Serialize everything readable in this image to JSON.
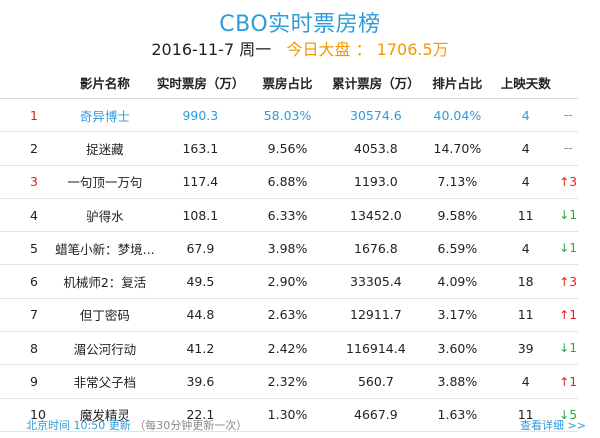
{
  "header": {
    "title": "CBO实时票房榜",
    "date": "2016-11-7 周一",
    "today_label": "今日大盘 ： 1706.5万"
  },
  "columns": [
    "影片名称",
    "实时票房（万）",
    "票房占比",
    "累计票房（万）",
    "排片占比",
    "上映天数"
  ],
  "rows": [
    {
      "rank": "1",
      "name": "奇异博士",
      "realtime": "990.3",
      "share": "58.03%",
      "cumulative": "30574.6",
      "screening": "40.04%",
      "days": "4",
      "trend": "--",
      "trend_dir": "none"
    },
    {
      "rank": "2",
      "name": "捉迷藏",
      "realtime": "163.1",
      "share": "9.56%",
      "cumulative": "4053.8",
      "screening": "14.70%",
      "days": "4",
      "trend": "--",
      "trend_dir": "none"
    },
    {
      "rank": "3",
      "name": "一句顶一万句",
      "realtime": "117.4",
      "share": "6.88%",
      "cumulative": "1193.0",
      "screening": "7.13%",
      "days": "4",
      "trend": "↑3",
      "trend_dir": "up"
    },
    {
      "rank": "4",
      "name": "驴得水",
      "realtime": "108.1",
      "share": "6.33%",
      "cumulative": "13452.0",
      "screening": "9.58%",
      "days": "11",
      "trend": "↓1",
      "trend_dir": "down"
    },
    {
      "rank": "5",
      "name": "蜡笔小新：梦境...",
      "realtime": "67.9",
      "share": "3.98%",
      "cumulative": "1676.8",
      "screening": "6.59%",
      "days": "4",
      "trend": "↓1",
      "trend_dir": "down"
    },
    {
      "rank": "6",
      "name": "机械师2：复活",
      "realtime": "49.5",
      "share": "2.90%",
      "cumulative": "33305.4",
      "screening": "4.09%",
      "days": "18",
      "trend": "↑3",
      "trend_dir": "up"
    },
    {
      "rank": "7",
      "name": "但丁密码",
      "realtime": "44.8",
      "share": "2.63%",
      "cumulative": "12911.7",
      "screening": "3.17%",
      "days": "11",
      "trend": "↑1",
      "trend_dir": "up"
    },
    {
      "rank": "8",
      "name": "湄公河行动",
      "realtime": "41.2",
      "share": "2.42%",
      "cumulative": "116914.4",
      "screening": "3.60%",
      "days": "39",
      "trend": "↓1",
      "trend_dir": "down"
    },
    {
      "rank": "9",
      "name": "非常父子档",
      "realtime": "39.6",
      "share": "2.32%",
      "cumulative": "560.7",
      "screening": "3.88%",
      "days": "4",
      "trend": "↑1",
      "trend_dir": "up"
    },
    {
      "rank": "10",
      "name": "魔发精灵",
      "realtime": "22.1",
      "share": "1.30%",
      "cumulative": "4667.9",
      "screening": "1.63%",
      "days": "11",
      "trend": "↓5",
      "trend_dir": "down"
    }
  ],
  "footer": {
    "update_time": "北京时间 10:50 更新",
    "update_note": "（每30分钟更新一次）",
    "details_link": "查看详细 >>"
  }
}
